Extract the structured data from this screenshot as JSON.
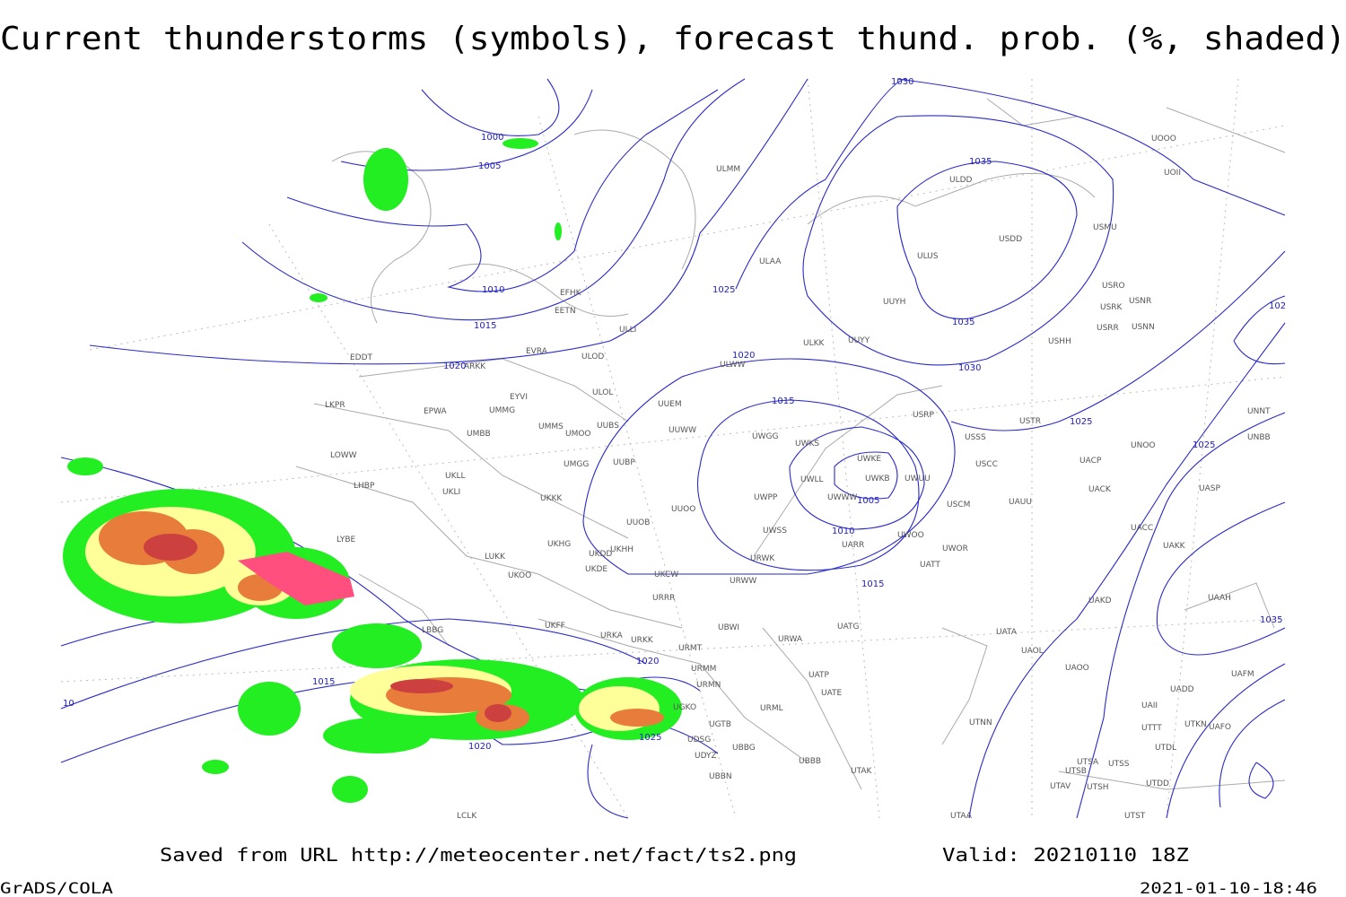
{
  "title": "Current thunderstorms (symbols), forecast thund. prob. (%, shaded)",
  "footer": {
    "saved": "Saved from URL http://meteocenter.net/fact/ts2.png",
    "valid": "Valid: 20210110 18Z",
    "software": "GrADS/COLA",
    "timestamp": "2021-01-10-18:46"
  },
  "stations": [
    "EDDT",
    "ARKK",
    "EFHK",
    "EETN",
    "ULLI",
    "EVRA",
    "ULOD",
    "EYVI",
    "ULOL",
    "UMMG",
    "EPWA",
    "LKPR",
    "UMMS",
    "UMOO",
    "UUBS",
    "UMBB",
    "UUEM",
    "UUWW",
    "LOWW",
    "UUBP",
    "UMGG",
    "UKLL",
    "UKLI",
    "LHBP",
    "UKKK",
    "UUOO",
    "UUOB",
    "LYBE",
    "UKHG",
    "UKDD",
    "UKHH",
    "LUKK",
    "UKDE",
    "UKOO",
    "UKCW",
    "URRR",
    "UKFF",
    "URKA",
    "URKK",
    "LBBG",
    "URMT",
    "URMM",
    "URMN",
    "UGKO",
    "UGTB",
    "UDSG",
    "UBBG",
    "UDYZ",
    "UBBN",
    "UBBB",
    "URML",
    "UATG",
    "URWA",
    "UATP",
    "UATE",
    "UTAK",
    "UTAA",
    "UTNN",
    "UATA",
    "UAOL",
    "UAOO",
    "UADD",
    "UAII",
    "UTTT",
    "UTDL",
    "UTSA",
    "UTSS",
    "UTSB",
    "UTAV",
    "UTSH",
    "UTDD",
    "UTST",
    "UAFM",
    "UAFO",
    "UTKN",
    "UAAH",
    "UAKD",
    "UAKK",
    "UACC",
    "UASP",
    "UACK",
    "UAUU",
    "UATT",
    "UWOR",
    "UWOO",
    "UARR",
    "USCM",
    "USCC",
    "UACP",
    "UNOO",
    "UNBB",
    "UNNT",
    "USSS",
    "USTR",
    "USRP",
    "UWKS",
    "UWKE",
    "UWKB",
    "UWUU",
    "UWLL",
    "UWWW",
    "UWPP",
    "UWGG",
    "UWSS",
    "URWK",
    "URWW",
    "UBWI",
    "UUYY",
    "UUYH",
    "ULKK",
    "ULWW",
    "ULAA",
    "ULMM",
    "USHH",
    "USRR",
    "USNN",
    "USRK",
    "USNR",
    "USRO",
    "USMU",
    "USDD",
    "ULDD",
    "UOOO",
    "UOII",
    "ULUS",
    "LCLK"
  ],
  "isobar_labels": [
    "1000",
    "1005",
    "1010",
    "1015",
    "1020",
    "1025",
    "1020",
    "1015",
    "1010",
    "1005",
    "1015",
    "1035",
    "1035",
    "1030",
    "1025",
    "1025",
    "1035",
    "1020",
    "1025",
    "1020",
    "1015",
    "1030",
    "102",
    "10"
  ]
}
